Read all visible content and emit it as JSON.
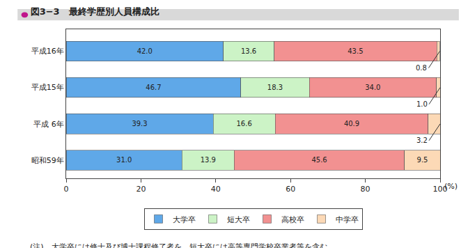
{
  "chart_data": {
    "type": "bar",
    "orientation": "horizontal",
    "stacked": true,
    "title": "図3−3　最終学歴別人員構成比",
    "categories": [
      "平成16年",
      "平成15年",
      "平成 6年",
      "昭和59年"
    ],
    "series": [
      {
        "name": "大学卒",
        "color": "#5fa8e8",
        "values": [
          42.0,
          46.7,
          39.3,
          31.0
        ],
        "value_labels": [
          "42.0",
          "46.7",
          "39.3",
          "31.0"
        ]
      },
      {
        "name": "短大卒",
        "color": "#ccf3c6",
        "values": [
          13.6,
          18.3,
          16.6,
          13.9
        ],
        "value_labels": [
          "13.6",
          "18.3",
          "16.6",
          "13.9"
        ]
      },
      {
        "name": "高校卒",
        "color": "#f29191",
        "values": [
          43.5,
          34.0,
          40.9,
          45.6
        ],
        "value_labels": [
          "43.5",
          "34.0",
          "40.9",
          "45.6"
        ]
      },
      {
        "name": "中学卒",
        "color": "#fcd9b6",
        "values": [
          0.8,
          1.0,
          3.2,
          9.5
        ],
        "value_labels": [
          "0.8",
          "1.0",
          "3.2",
          "9.5"
        ]
      }
    ],
    "xlim": [
      0,
      100
    ],
    "xticks": [
      0,
      20,
      40,
      60,
      80,
      100
    ],
    "xlabel": "(%)",
    "grid": false,
    "legend": "bottom",
    "data_labels": true,
    "note": "(注)　大学卒には修士及び博士課程修了者を、短大卒には高等専門学校卒業者等を含む。"
  }
}
